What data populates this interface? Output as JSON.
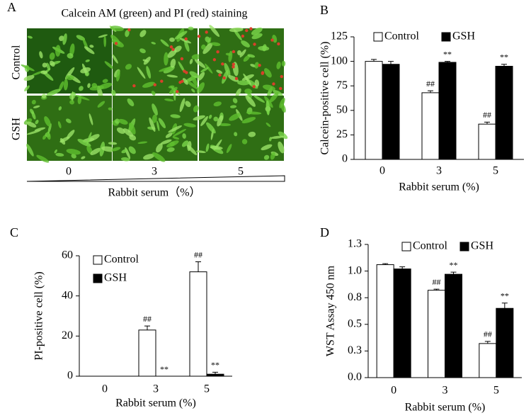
{
  "panel_a": {
    "panel_label": "A",
    "title": "Calcein AM (green) and PI (red)  staining",
    "row_labels": [
      "Control",
      "GSH"
    ],
    "column_labels": [
      "0",
      "3",
      "5"
    ],
    "xlabel": "Rabbit serum（%）"
  },
  "chart_data": [
    {
      "type": "bar",
      "panel_label": "B",
      "xlabel": "Rabbit serum (%)",
      "ylabel": "Calcein-positive cell (%)",
      "categories": [
        "0",
        "3",
        "5"
      ],
      "legend": "upper center",
      "series": [
        {
          "name": "Control",
          "color": "#ffffff",
          "values": [
            100,
            68,
            36
          ],
          "errors": [
            2,
            2,
            2
          ],
          "value_annotations": [
            null,
            "##",
            "##"
          ]
        },
        {
          "name": "GSH",
          "color": "#000000",
          "values": [
            97,
            99,
            95
          ],
          "errors": [
            3,
            1,
            2
          ],
          "value_annotations": [
            null,
            "**",
            "**"
          ]
        }
      ],
      "ylim": [
        0,
        125
      ],
      "yticks": [
        0,
        25,
        50,
        75,
        100,
        125
      ]
    },
    {
      "type": "bar",
      "panel_label": "C",
      "xlabel": "Rabbit serum (%)",
      "ylabel": "PI-positive cell (%)",
      "categories": [
        "0",
        "3",
        "5"
      ],
      "legend": "upper left",
      "series": [
        {
          "name": "Control",
          "color": "#ffffff",
          "values": [
            0,
            23,
            52
          ],
          "errors": [
            0,
            2,
            5
          ],
          "value_annotations": [
            null,
            "##",
            "##"
          ]
        },
        {
          "name": "GSH",
          "color": "#000000",
          "values": [
            0,
            0,
            1
          ],
          "errors": [
            0,
            0,
            1
          ],
          "value_annotations": [
            null,
            "**",
            "**"
          ]
        }
      ],
      "ylim": [
        0,
        60
      ],
      "yticks": [
        0,
        20,
        40,
        60
      ]
    },
    {
      "type": "bar",
      "panel_label": "D",
      "xlabel": "Rabbit serum (%)",
      "ylabel": "WST Assay  450 nm",
      "categories": [
        "0",
        "3",
        "5"
      ],
      "legend": "upper right",
      "series": [
        {
          "name": "Control",
          "color": "#ffffff",
          "values": [
            1.06,
            0.82,
            0.32
          ],
          "errors": [
            0.01,
            0.01,
            0.02
          ],
          "value_annotations": [
            null,
            "##",
            "##"
          ]
        },
        {
          "name": "GSH",
          "color": "#000000",
          "values": [
            1.02,
            0.97,
            0.65
          ],
          "errors": [
            0.02,
            0.02,
            0.05
          ],
          "value_annotations": [
            null,
            "**",
            "**"
          ]
        }
      ],
      "ylim": [
        0,
        1.25
      ],
      "yticks": [
        {
          "value": 0,
          "label": "0.0"
        },
        {
          "value": 0.25,
          "label": "0.3"
        },
        0.5,
        {
          "value": 0.75,
          "label": "0.8"
        },
        {
          "value": 1,
          "label": "1.0"
        },
        {
          "value": 1.25,
          "label": "1.3"
        }
      ]
    }
  ]
}
